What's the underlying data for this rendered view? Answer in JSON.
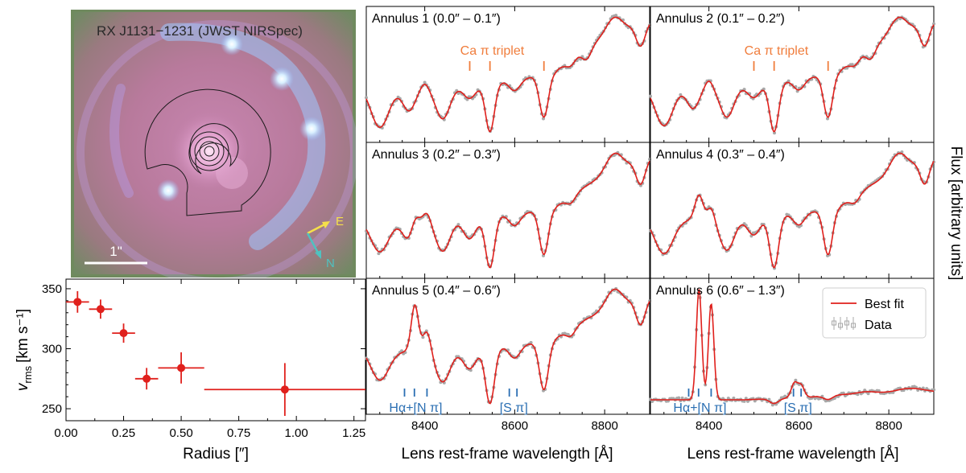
{
  "image_panel": {
    "title": "RX J1131−1231 (JWST NIRSpec)",
    "scalebar_label": "1\"",
    "compass_east": "E",
    "compass_north": "N"
  },
  "chart_data": [
    {
      "type": "scatter",
      "xlabel": "Radius [″]",
      "ylabel": "v_rms [km s⁻¹]",
      "ylabel_main": "v",
      "ylabel_sub": "rms",
      "ylabel_unit": "[km s⁻¹]",
      "xlim": [
        0.0,
        1.3
      ],
      "ylim": [
        240,
        358
      ],
      "xticks": [
        0.0,
        0.25,
        0.5,
        0.75,
        1.0,
        1.25
      ],
      "xtick_labels": [
        "0.00",
        "0.25",
        "0.50",
        "0.75",
        "1.00",
        "1.25"
      ],
      "yticks": [
        250,
        300,
        350
      ],
      "ytick_labels": [
        "250",
        "300",
        "350"
      ],
      "color": "#e0201c",
      "points": [
        {
          "x": 0.05,
          "xerr": 0.05,
          "y": 339,
          "yerr": 9
        },
        {
          "x": 0.15,
          "xerr": 0.05,
          "y": 333,
          "yerr": 8
        },
        {
          "x": 0.25,
          "xerr": 0.05,
          "y": 313,
          "yerr": 8
        },
        {
          "x": 0.35,
          "xerr": 0.05,
          "y": 275,
          "yerr": 9
        },
        {
          "x": 0.5,
          "xerr": 0.1,
          "y": 284,
          "yerr": 13
        },
        {
          "x": 0.95,
          "xerr": 0.35,
          "y": 266,
          "yerr": 22
        }
      ]
    },
    {
      "type": "line",
      "xlabel": "Lens rest-frame wavelength [Å]",
      "ylabel": "Flux [arbitrary units]",
      "xlim": [
        8270,
        8900
      ],
      "xticks": [
        8400,
        8600,
        8800
      ],
      "xtick_labels": [
        "8400",
        "8600",
        "8800"
      ],
      "model_color": "#e0201c",
      "data_color": "#a8a8a8",
      "legend": {
        "position": "top-right",
        "best_fit": "Best fit",
        "data": "Data"
      },
      "line_markers": {
        "ca_label": "Ca π triplet",
        "ca_color": "#f07d3c",
        "ca_wavelengths": [
          8500,
          8545,
          8665
        ],
        "halpha_label": "Hα+[N π]",
        "halpha_wavelengths": [
          8355,
          8377,
          8405
        ],
        "sii_label": "[S π]",
        "sii_wavelengths": [
          8588,
          8605
        ],
        "em_color": "#2b6fb3"
      },
      "panels": [
        {
          "label": "Annulus 1 (0.0″ – 0.1″)",
          "show_ca": true,
          "show_em": false,
          "features": [
            [
              8300,
              0.75,
              20
            ],
            [
              8365,
              0.42,
              14
            ],
            [
              8440,
              0.6,
              16
            ],
            [
              8500,
              0.25,
              14
            ],
            [
              8545,
              0.9,
              10
            ],
            [
              8600,
              0.2,
              12
            ],
            [
              8665,
              0.8,
              10
            ],
            [
              8725,
              0.12,
              10
            ],
            [
              8760,
              0.22,
              10
            ],
            [
              8820,
              -0.3,
              18
            ],
            [
              8880,
              0.4,
              10
            ]
          ],
          "emission": [
            [
              8400,
              -0.1,
              8
            ]
          ],
          "baseline": [
            0.62,
            0.64,
            0.63,
            0.62,
            0.6,
            0.57,
            0.52,
            0.35,
            0.24,
            0.17
          ]
        },
        {
          "label": "Annulus 2 (0.1″ – 0.2″)",
          "show_ca": true,
          "show_em": false,
          "features": [
            [
              8300,
              0.75,
              20
            ],
            [
              8365,
              0.42,
              14
            ],
            [
              8440,
              0.6,
              16
            ],
            [
              8500,
              0.25,
              14
            ],
            [
              8545,
              0.92,
              10
            ],
            [
              8600,
              0.2,
              12
            ],
            [
              8665,
              0.82,
              10
            ],
            [
              8725,
              0.12,
              10
            ],
            [
              8760,
              0.22,
              10
            ],
            [
              8820,
              -0.3,
              18
            ],
            [
              8880,
              0.4,
              10
            ]
          ],
          "emission": [
            [
              8400,
              -0.12,
              8
            ]
          ],
          "baseline": [
            0.62,
            0.63,
            0.62,
            0.62,
            0.6,
            0.57,
            0.52,
            0.35,
            0.24,
            0.17
          ]
        },
        {
          "label": "Annulus 3 (0.2″ – 0.3″)",
          "show_ca": false,
          "show_em": false,
          "features": [
            [
              8300,
              0.55,
              20
            ],
            [
              8365,
              0.35,
              14
            ],
            [
              8440,
              0.55,
              16
            ],
            [
              8500,
              0.35,
              14
            ],
            [
              8545,
              0.88,
              10
            ],
            [
              8600,
              0.2,
              12
            ],
            [
              8665,
              0.78,
              10
            ],
            [
              8725,
              0.12,
              10
            ],
            [
              8820,
              -0.3,
              18
            ],
            [
              8880,
              0.4,
              10
            ]
          ],
          "emission": [
            [
              8378,
              -0.22,
              9
            ],
            [
              8405,
              -0.15,
              8
            ]
          ],
          "baseline": [
            0.58,
            0.59,
            0.58,
            0.58,
            0.56,
            0.54,
            0.5,
            0.36,
            0.25,
            0.18
          ]
        },
        {
          "label": "Annulus 4 (0.3″ – 0.4″)",
          "show_ca": false,
          "show_em": false,
          "features": [
            [
              8300,
              0.6,
              20
            ],
            [
              8440,
              0.55,
              16
            ],
            [
              8500,
              0.3,
              14
            ],
            [
              8545,
              0.9,
              10
            ],
            [
              8600,
              0.2,
              12
            ],
            [
              8665,
              0.8,
              10
            ],
            [
              8725,
              0.12,
              10
            ],
            [
              8820,
              -0.3,
              18
            ],
            [
              8880,
              0.4,
              10
            ]
          ],
          "emission": [
            [
              8378,
              -0.42,
              9
            ],
            [
              8405,
              -0.22,
              8
            ]
          ],
          "baseline": [
            0.58,
            0.59,
            0.58,
            0.58,
            0.56,
            0.54,
            0.5,
            0.36,
            0.25,
            0.18
          ]
        },
        {
          "label": "Annulus 5 (0.4″ – 0.6″)",
          "show_ca": false,
          "show_em": true,
          "features": [
            [
              8300,
              0.5,
              20
            ],
            [
              8440,
              0.5,
              16
            ],
            [
              8500,
              0.3,
              14
            ],
            [
              8545,
              0.9,
              10
            ],
            [
              8600,
              0.2,
              12
            ],
            [
              8665,
              0.8,
              10
            ],
            [
              8725,
              0.12,
              10
            ],
            [
              8820,
              -0.3,
              18
            ],
            [
              8880,
              0.4,
              10
            ]
          ],
          "emission": [
            [
              8378,
              -0.75,
              8
            ],
            [
              8405,
              -0.35,
              9
            ]
          ],
          "baseline": [
            0.48,
            0.5,
            0.5,
            0.5,
            0.48,
            0.46,
            0.42,
            0.3,
            0.22,
            0.17
          ]
        },
        {
          "label": "Annulus 6 (0.6″ – 1.3″)",
          "show_ca": false,
          "show_em": true,
          "features": [
            [
              8545,
              0.1,
              10
            ],
            [
              8665,
              0.08,
              10
            ]
          ],
          "emission": [
            [
              8378,
              -2.3,
              6
            ],
            [
              8405,
              -2.0,
              6
            ],
            [
              8590,
              -0.3,
              7
            ],
            [
              8605,
              -0.25,
              7
            ],
            [
              8750,
              -0.04,
              20
            ],
            [
              8850,
              -0.08,
              30
            ]
          ],
          "baseline": [
            0.9,
            0.9,
            0.9,
            0.9,
            0.89,
            0.88,
            0.86,
            0.85,
            0.84,
            0.84
          ]
        }
      ]
    }
  ]
}
